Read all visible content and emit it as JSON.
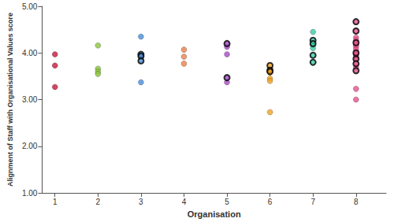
{
  "chart_data": {
    "type": "scatter",
    "x_label": "Organisation",
    "y_label": "Alignment of Staff with Organisational Values score",
    "xlim": [
      0.7,
      8.7
    ],
    "xticks": [
      1,
      2,
      3,
      4,
      5,
      6,
      7,
      8
    ],
    "ylim": [
      1,
      5
    ],
    "yticks": [
      {
        "value": 1,
        "label": "1.00"
      },
      {
        "value": 2,
        "label": "2.00"
      },
      {
        "value": 3,
        "label": "3.00"
      },
      {
        "value": 4,
        "label": "4.00"
      },
      {
        "value": 5,
        "label": "5.00"
      }
    ],
    "grid": false,
    "series": [
      {
        "color": "#c8173a",
        "marker": "circle",
        "x": [
          1,
          1,
          1
        ],
        "values": [
          3.97,
          3.73,
          3.27
        ]
      },
      {
        "color": "#8cc63f",
        "marker": "circle",
        "x": [
          2,
          2,
          2,
          2
        ],
        "values": [
          4.16,
          3.66,
          3.6,
          3.55
        ]
      },
      {
        "color": "#4a8fd9",
        "marker": "circle",
        "x": [
          3,
          3
        ],
        "values": [
          4.35,
          3.37
        ]
      },
      {
        "color": "#4a8fd9",
        "marker": "circle_outlined",
        "x": [
          3,
          3,
          3
        ],
        "values": [
          3.97,
          3.93,
          3.83
        ]
      },
      {
        "color": "#e8824a",
        "marker": "circle",
        "x": [
          4,
          4,
          4
        ],
        "values": [
          4.07,
          3.92,
          3.77
        ]
      },
      {
        "color": "#a64ac9",
        "marker": "circle",
        "x": [
          5,
          5,
          5
        ],
        "values": [
          4.13,
          3.97,
          3.37
        ]
      },
      {
        "color": "#a64ac9",
        "marker": "circle_outlined",
        "x": [
          5,
          5
        ],
        "values": [
          4.2,
          3.47
        ]
      },
      {
        "color": "#f0a323",
        "marker": "circle",
        "x": [
          6,
          6,
          6,
          6
        ],
        "values": [
          3.58,
          3.45,
          3.4,
          2.73
        ]
      },
      {
        "color": "#f0a323",
        "marker": "circle_outlined",
        "x": [
          6,
          6,
          6
        ],
        "values": [
          3.73,
          3.63,
          3.6
        ]
      },
      {
        "color": "#3fc9a8",
        "marker": "circle",
        "x": [
          7,
          7,
          7
        ],
        "values": [
          4.45,
          4.17,
          4.1
        ]
      },
      {
        "color": "#3fc9a8",
        "marker": "circle_outlined",
        "x": [
          7,
          7,
          7,
          7
        ],
        "values": [
          4.27,
          4.2,
          3.95,
          3.8
        ]
      },
      {
        "color": "#e8508f",
        "marker": "circle",
        "x": [
          8,
          8,
          8,
          8,
          8,
          8,
          8,
          8,
          8,
          8
        ],
        "values": [
          4.33,
          4.27,
          4.17,
          4.13,
          4.07,
          3.97,
          3.93,
          3.7,
          3.23,
          3.0
        ]
      },
      {
        "color": "#e8508f",
        "marker": "circle_outlined",
        "x": [
          8,
          8,
          8,
          8,
          8,
          8,
          8
        ],
        "values": [
          4.67,
          4.47,
          4.22,
          4.0,
          3.87,
          3.77,
          3.62
        ]
      }
    ]
  }
}
